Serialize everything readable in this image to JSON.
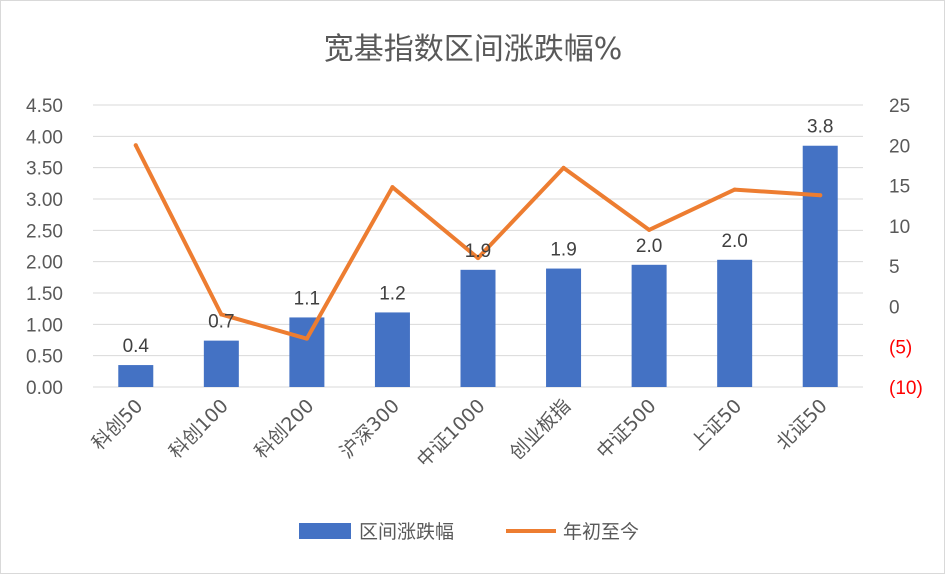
{
  "colors": {
    "bar": "#4472c4",
    "line": "#ed7d31",
    "negative_tick": "#ff0000",
    "grid": "#d9d9d9",
    "text": "#595959"
  },
  "chart_data": {
    "type": "bar",
    "title": "宽基指数区间涨跌幅%",
    "categories": [
      "科创50",
      "科创100",
      "科创200",
      "沪深300",
      "中证1000",
      "创业板指",
      "中证500",
      "上证50",
      "北证50"
    ],
    "series": [
      {
        "name": "区间涨跌幅",
        "type": "bar",
        "axis": "left",
        "values": [
          0.35,
          0.74,
          1.11,
          1.19,
          1.87,
          1.89,
          1.95,
          2.03,
          3.85
        ],
        "data_labels": [
          "0.4",
          "0.7",
          "1.1",
          "1.2",
          "1.9",
          "1.9",
          "2.0",
          "2.0",
          "3.8"
        ]
      },
      {
        "name": "年初至今",
        "type": "line",
        "axis": "right",
        "values": [
          20.0,
          -1.0,
          -4.0,
          14.8,
          6.0,
          17.2,
          9.5,
          14.5,
          13.8
        ]
      }
    ],
    "y_left": {
      "min": 0,
      "max": 4.5,
      "step": 0.5,
      "tick_labels": [
        "0.00",
        "0.50",
        "1.00",
        "1.50",
        "2.00",
        "2.50",
        "3.00",
        "3.50",
        "4.00",
        "4.50"
      ]
    },
    "y_right": {
      "min": -10,
      "max": 25,
      "step": 5,
      "tick_labels": [
        "(10)",
        "(5)",
        "0",
        "5",
        "10",
        "15",
        "20",
        "25"
      ]
    },
    "grid": true,
    "legend": "bottom"
  }
}
